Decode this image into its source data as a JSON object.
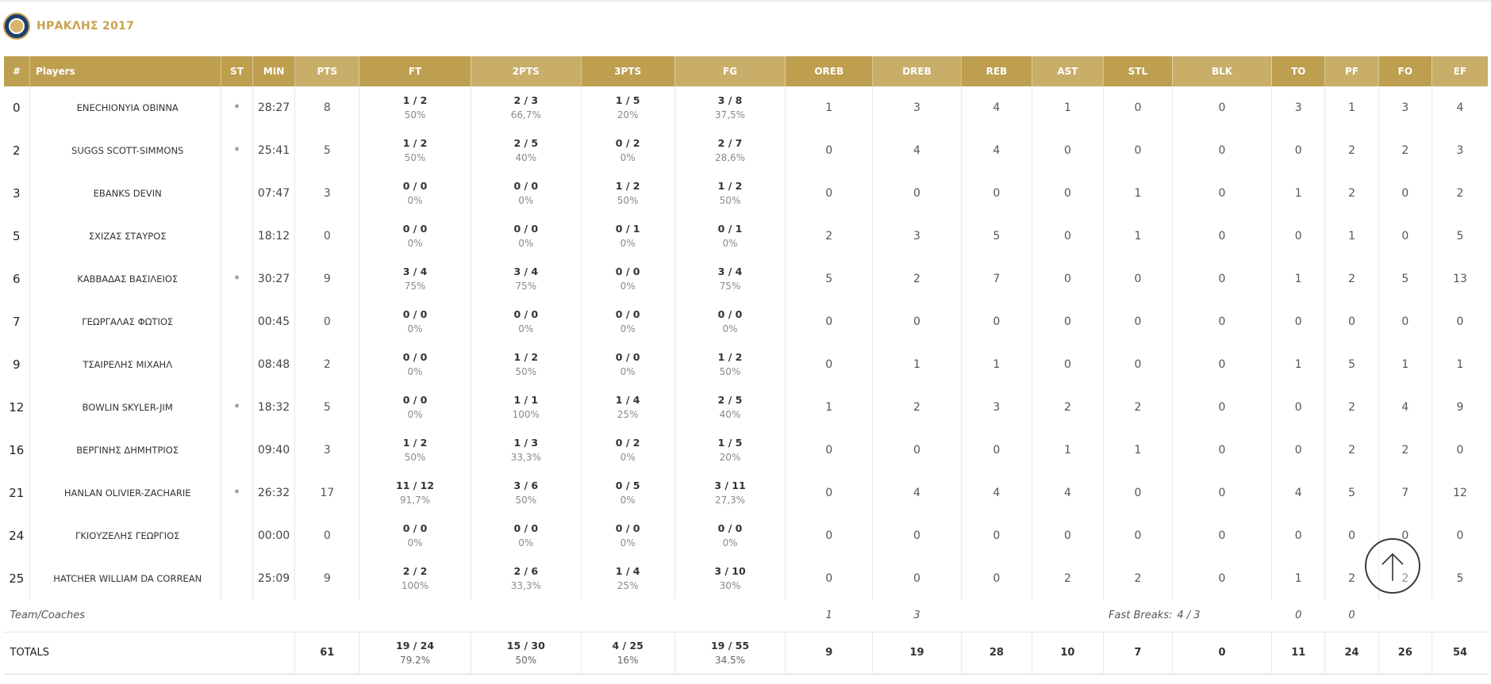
{
  "team": {
    "name": "ΗΡΑΚΛΗΣ 2017",
    "accent_color": "#c9a24c",
    "logo_icon": "team-crest-icon"
  },
  "table": {
    "header_color": "#bd9f4f",
    "headers": [
      "#",
      "Players",
      "ST",
      "MIN",
      "PTS",
      "FT",
      "2PTS",
      "3PTS",
      "FG",
      "OREB",
      "DREB",
      "REB",
      "AST",
      "STL",
      "BLK",
      "TO",
      "PF",
      "FO",
      "EF"
    ],
    "players": [
      {
        "num": "0",
        "name": "ENECHIONYIA OBINNA",
        "st": "*",
        "min": "28:27",
        "pts": "8",
        "ft": {
          "ratio": "1 / 2",
          "pct": "50%"
        },
        "pts2": {
          "ratio": "2 / 3",
          "pct": "66,7%"
        },
        "pts3": {
          "ratio": "1 / 5",
          "pct": "20%"
        },
        "fg": {
          "ratio": "3 / 8",
          "pct": "37,5%"
        },
        "oreb": "1",
        "dreb": "3",
        "reb": "4",
        "ast": "1",
        "stl": "0",
        "blk": "0",
        "to": "3",
        "pf": "1",
        "fo": "3",
        "ef": "4"
      },
      {
        "num": "2",
        "name": "SUGGS SCOTT-SIMMONS",
        "st": "*",
        "min": "25:41",
        "pts": "5",
        "ft": {
          "ratio": "1 / 2",
          "pct": "50%"
        },
        "pts2": {
          "ratio": "2 / 5",
          "pct": "40%"
        },
        "pts3": {
          "ratio": "0 / 2",
          "pct": "0%"
        },
        "fg": {
          "ratio": "2 / 7",
          "pct": "28,6%"
        },
        "oreb": "0",
        "dreb": "4",
        "reb": "4",
        "ast": "0",
        "stl": "0",
        "blk": "0",
        "to": "0",
        "pf": "2",
        "fo": "2",
        "ef": "3"
      },
      {
        "num": "3",
        "name": "EBANKS DEVIN",
        "st": "",
        "min": "07:47",
        "pts": "3",
        "ft": {
          "ratio": "0 / 0",
          "pct": "0%"
        },
        "pts2": {
          "ratio": "0 / 0",
          "pct": "0%"
        },
        "pts3": {
          "ratio": "1 / 2",
          "pct": "50%"
        },
        "fg": {
          "ratio": "1 / 2",
          "pct": "50%"
        },
        "oreb": "0",
        "dreb": "0",
        "reb": "0",
        "ast": "0",
        "stl": "1",
        "blk": "0",
        "to": "1",
        "pf": "2",
        "fo": "0",
        "ef": "2"
      },
      {
        "num": "5",
        "name": "ΣΧΙΖΑΣ ΣΤΑΥΡΟΣ",
        "st": "",
        "min": "18:12",
        "pts": "0",
        "ft": {
          "ratio": "0 / 0",
          "pct": "0%"
        },
        "pts2": {
          "ratio": "0 / 0",
          "pct": "0%"
        },
        "pts3": {
          "ratio": "0 / 1",
          "pct": "0%"
        },
        "fg": {
          "ratio": "0 / 1",
          "pct": "0%"
        },
        "oreb": "2",
        "dreb": "3",
        "reb": "5",
        "ast": "0",
        "stl": "1",
        "blk": "0",
        "to": "0",
        "pf": "1",
        "fo": "0",
        "ef": "5"
      },
      {
        "num": "6",
        "name": "ΚΑΒΒΑΔΑΣ ΒΑΣΙΛΕΙΟΣ",
        "st": "*",
        "min": "30:27",
        "pts": "9",
        "ft": {
          "ratio": "3 / 4",
          "pct": "75%"
        },
        "pts2": {
          "ratio": "3 / 4",
          "pct": "75%"
        },
        "pts3": {
          "ratio": "0 / 0",
          "pct": "0%"
        },
        "fg": {
          "ratio": "3 / 4",
          "pct": "75%"
        },
        "oreb": "5",
        "dreb": "2",
        "reb": "7",
        "ast": "0",
        "stl": "0",
        "blk": "0",
        "to": "1",
        "pf": "2",
        "fo": "5",
        "ef": "13"
      },
      {
        "num": "7",
        "name": "ΓΕΩΡΓΑΛΑΣ ΦΩΤΙΟΣ",
        "st": "",
        "min": "00:45",
        "pts": "0",
        "ft": {
          "ratio": "0 / 0",
          "pct": "0%"
        },
        "pts2": {
          "ratio": "0 / 0",
          "pct": "0%"
        },
        "pts3": {
          "ratio": "0 / 0",
          "pct": "0%"
        },
        "fg": {
          "ratio": "0 / 0",
          "pct": "0%"
        },
        "oreb": "0",
        "dreb": "0",
        "reb": "0",
        "ast": "0",
        "stl": "0",
        "blk": "0",
        "to": "0",
        "pf": "0",
        "fo": "0",
        "ef": "0"
      },
      {
        "num": "9",
        "name": "ΤΣΑΙΡΕΛΗΣ ΜΙΧΑΗΛ",
        "st": "",
        "min": "08:48",
        "pts": "2",
        "ft": {
          "ratio": "0 / 0",
          "pct": "0%"
        },
        "pts2": {
          "ratio": "1 / 2",
          "pct": "50%"
        },
        "pts3": {
          "ratio": "0 / 0",
          "pct": "0%"
        },
        "fg": {
          "ratio": "1 / 2",
          "pct": "50%"
        },
        "oreb": "0",
        "dreb": "1",
        "reb": "1",
        "ast": "0",
        "stl": "0",
        "blk": "0",
        "to": "1",
        "pf": "5",
        "fo": "1",
        "ef": "1"
      },
      {
        "num": "12",
        "name": "BOWLIN SKYLER-JIM",
        "st": "*",
        "min": "18:32",
        "pts": "5",
        "ft": {
          "ratio": "0 / 0",
          "pct": "0%"
        },
        "pts2": {
          "ratio": "1 / 1",
          "pct": "100%"
        },
        "pts3": {
          "ratio": "1 / 4",
          "pct": "25%"
        },
        "fg": {
          "ratio": "2 / 5",
          "pct": "40%"
        },
        "oreb": "1",
        "dreb": "2",
        "reb": "3",
        "ast": "2",
        "stl": "2",
        "blk": "0",
        "to": "0",
        "pf": "2",
        "fo": "4",
        "ef": "9"
      },
      {
        "num": "16",
        "name": "ΒΕΡΓΙΝΗΣ ΔΗΜΗΤΡΙΟΣ",
        "st": "",
        "min": "09:40",
        "pts": "3",
        "ft": {
          "ratio": "1 / 2",
          "pct": "50%"
        },
        "pts2": {
          "ratio": "1 / 3",
          "pct": "33,3%"
        },
        "pts3": {
          "ratio": "0 / 2",
          "pct": "0%"
        },
        "fg": {
          "ratio": "1 / 5",
          "pct": "20%"
        },
        "oreb": "0",
        "dreb": "0",
        "reb": "0",
        "ast": "1",
        "stl": "1",
        "blk": "0",
        "to": "0",
        "pf": "2",
        "fo": "2",
        "ef": "0"
      },
      {
        "num": "21",
        "name": "HANLAN OLIVIER-ZACHARIE",
        "st": "*",
        "min": "26:32",
        "pts": "17",
        "ft": {
          "ratio": "11 / 12",
          "pct": "91,7%"
        },
        "pts2": {
          "ratio": "3 / 6",
          "pct": "50%"
        },
        "pts3": {
          "ratio": "0 / 5",
          "pct": "0%"
        },
        "fg": {
          "ratio": "3 / 11",
          "pct": "27,3%"
        },
        "oreb": "0",
        "dreb": "4",
        "reb": "4",
        "ast": "4",
        "stl": "0",
        "blk": "0",
        "to": "4",
        "pf": "5",
        "fo": "7",
        "ef": "12"
      },
      {
        "num": "24",
        "name": "ΓΚΙΟΥΖΕΛΗΣ ΓΕΩΡΓΙΟΣ",
        "st": "",
        "min": "00:00",
        "pts": "0",
        "ft": {
          "ratio": "0 / 0",
          "pct": "0%"
        },
        "pts2": {
          "ratio": "0 / 0",
          "pct": "0%"
        },
        "pts3": {
          "ratio": "0 / 0",
          "pct": "0%"
        },
        "fg": {
          "ratio": "0 / 0",
          "pct": "0%"
        },
        "oreb": "0",
        "dreb": "0",
        "reb": "0",
        "ast": "0",
        "stl": "0",
        "blk": "0",
        "to": "0",
        "pf": "0",
        "fo": "0",
        "ef": "0"
      },
      {
        "num": "25",
        "name": "HATCHER WILLIAM DA CORREAN",
        "st": "",
        "min": "25:09",
        "pts": "9",
        "ft": {
          "ratio": "2 / 2",
          "pct": "100%"
        },
        "pts2": {
          "ratio": "2 / 6",
          "pct": "33,3%"
        },
        "pts3": {
          "ratio": "1 / 4",
          "pct": "25%"
        },
        "fg": {
          "ratio": "3 / 10",
          "pct": "30%"
        },
        "oreb": "0",
        "dreb": "0",
        "reb": "0",
        "ast": "2",
        "stl": "2",
        "blk": "0",
        "to": "1",
        "pf": "2",
        "fo": "2",
        "ef": "5"
      }
    ],
    "team_coaches": {
      "label": "Team/Coaches",
      "oreb": "1",
      "dreb": "3",
      "fast_breaks_label": "Fast Breaks:",
      "fast_breaks_value": "4 / 3",
      "to": "0",
      "pf": "0"
    },
    "totals": {
      "label": "TOTALS",
      "pts": "61",
      "ft": {
        "ratio": "19 / 24",
        "pct": "79.2%"
      },
      "pts2": {
        "ratio": "15 / 30",
        "pct": "50%"
      },
      "pts3": {
        "ratio": "4 / 25",
        "pct": "16%"
      },
      "fg": {
        "ratio": "19 / 55",
        "pct": "34.5%"
      },
      "oreb": "9",
      "dreb": "19",
      "reb": "28",
      "ast": "10",
      "stl": "7",
      "blk": "0",
      "to": "11",
      "pf": "24",
      "fo": "26",
      "ef": "54"
    }
  },
  "scroll_top": {
    "icon": "arrow-up-icon"
  }
}
